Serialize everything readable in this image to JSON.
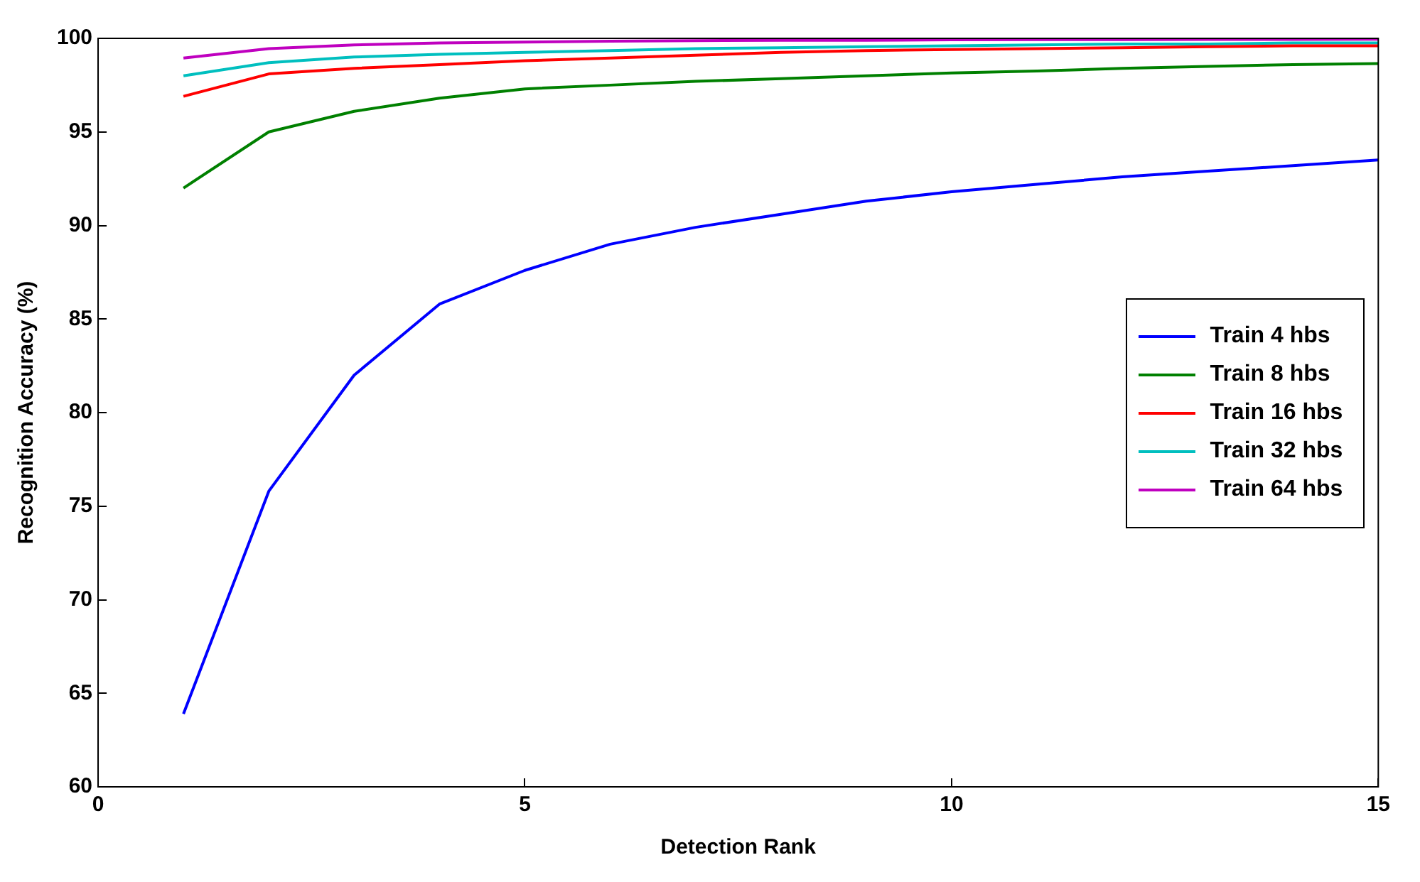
{
  "chart_data": {
    "type": "line",
    "xlabel": "Detection Rank",
    "ylabel": "Recognition Accuracy (%)",
    "x": [
      1,
      2,
      3,
      4,
      5,
      6,
      7,
      8,
      9,
      10,
      11,
      12,
      13,
      14,
      15
    ],
    "xlim": [
      0,
      15
    ],
    "xticks": [
      0,
      5,
      10,
      15
    ],
    "ylim": [
      60,
      100
    ],
    "yticks": [
      60,
      65,
      70,
      75,
      80,
      85,
      90,
      95,
      100
    ],
    "grid": false,
    "legend": "right",
    "marker": "none",
    "line_style": "solid",
    "series": [
      {
        "name": "Train 4 hbs",
        "color": "#0000ff",
        "values": [
          63.9,
          75.8,
          82.0,
          85.8,
          87.6,
          89.0,
          89.9,
          90.6,
          91.3,
          91.8,
          92.2,
          92.6,
          92.9,
          93.2,
          93.5
        ]
      },
      {
        "name": "Train 8 hbs",
        "color": "#008000",
        "values": [
          92.0,
          95.0,
          96.1,
          96.8,
          97.3,
          97.5,
          97.7,
          97.85,
          98.0,
          98.15,
          98.25,
          98.4,
          98.5,
          98.6,
          98.65
        ]
      },
      {
        "name": "Train 16 hbs",
        "color": "#ff0000",
        "values": [
          96.9,
          98.1,
          98.4,
          98.6,
          98.8,
          98.95,
          99.1,
          99.25,
          99.35,
          99.4,
          99.45,
          99.5,
          99.55,
          99.6,
          99.6
        ]
      },
      {
        "name": "Train 32 hbs",
        "color": "#00bfbf",
        "values": [
          98.0,
          98.7,
          99.0,
          99.15,
          99.25,
          99.35,
          99.45,
          99.5,
          99.55,
          99.6,
          99.65,
          99.7,
          99.7,
          99.75,
          99.75
        ]
      },
      {
        "name": "Train 64 hbs",
        "color": "#bf00bf",
        "values": [
          98.95,
          99.45,
          99.65,
          99.75,
          99.8,
          99.85,
          99.88,
          99.9,
          99.9,
          99.92,
          99.93,
          99.93,
          99.94,
          99.94,
          99.95
        ]
      }
    ]
  }
}
